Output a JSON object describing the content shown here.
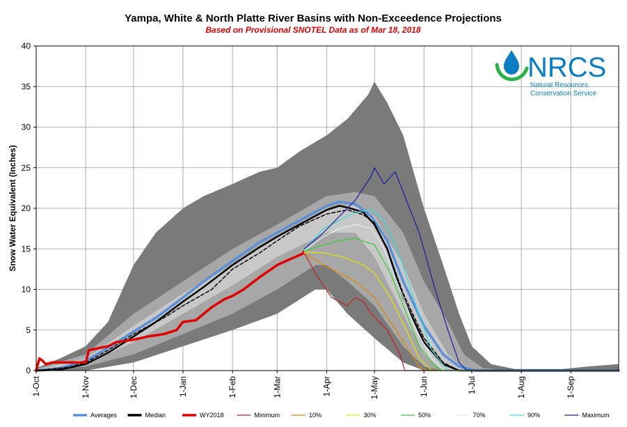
{
  "chart_data": {
    "type": "line",
    "title": "Yampa, White & North Platte River Basins with Non-Exceedence Projections",
    "subtitle": "Based on Provisional SNOTEL Data as of Mar 18, 2018",
    "xlabel": "",
    "ylabel": "Snow Water Equivalent (Inches)",
    "ylim": [
      0,
      40
    ],
    "yticks": [
      0,
      5,
      10,
      15,
      20,
      25,
      30,
      35,
      40
    ],
    "xticks": [
      {
        "label": "1-Oct",
        "day": 0
      },
      {
        "label": "1-Nov",
        "day": 31
      },
      {
        "label": "1-Dec",
        "day": 61
      },
      {
        "label": "1-Jan",
        "day": 92
      },
      {
        "label": "1-Feb",
        "day": 123
      },
      {
        "label": "1-Mar",
        "day": 151
      },
      {
        "label": "1-Apr",
        "day": 182
      },
      {
        "label": "1-May",
        "day": 212
      },
      {
        "label": "1-Jun",
        "day": 243
      },
      {
        "label": "1-Jul",
        "day": 273
      },
      {
        "label": "1-Aug",
        "day": 304
      },
      {
        "label": "1-Sep",
        "day": 335
      }
    ],
    "xlim": [
      0,
      365
    ],
    "grid": true,
    "bands": [
      {
        "name": "Max-Min range",
        "color": "#7a7a7a",
        "upper": [
          [
            0,
            0.3
          ],
          [
            15,
            1.5
          ],
          [
            31,
            3
          ],
          [
            45,
            6
          ],
          [
            61,
            13
          ],
          [
            75,
            17
          ],
          [
            92,
            20
          ],
          [
            105,
            21.5
          ],
          [
            123,
            23
          ],
          [
            140,
            24.5
          ],
          [
            151,
            25
          ],
          [
            165,
            27
          ],
          [
            182,
            29
          ],
          [
            195,
            31
          ],
          [
            208,
            34
          ],
          [
            212,
            35.6
          ],
          [
            220,
            33
          ],
          [
            230,
            29
          ],
          [
            243,
            20
          ],
          [
            255,
            13
          ],
          [
            265,
            7
          ],
          [
            273,
            3
          ],
          [
            285,
            0.8
          ],
          [
            300,
            0.2
          ],
          [
            330,
            0.2
          ],
          [
            345,
            0.5
          ],
          [
            365,
            0.8
          ]
        ],
        "lower": [
          [
            0,
            0
          ],
          [
            31,
            0
          ],
          [
            61,
            1
          ],
          [
            92,
            3
          ],
          [
            123,
            5
          ],
          [
            151,
            7
          ],
          [
            175,
            10
          ],
          [
            182,
            10
          ],
          [
            195,
            7
          ],
          [
            212,
            4
          ],
          [
            230,
            1
          ],
          [
            243,
            0
          ],
          [
            365,
            0
          ]
        ]
      },
      {
        "name": "10-90 range",
        "color": "#a7a7a7",
        "upper": [
          [
            0,
            0.2
          ],
          [
            31,
            2
          ],
          [
            61,
            7
          ],
          [
            92,
            11
          ],
          [
            123,
            15
          ],
          [
            151,
            18
          ],
          [
            182,
            21.5
          ],
          [
            200,
            22
          ],
          [
            212,
            21.5
          ],
          [
            230,
            17
          ],
          [
            243,
            11
          ],
          [
            258,
            6
          ],
          [
            268,
            2
          ],
          [
            280,
            0.3
          ],
          [
            300,
            0
          ],
          [
            365,
            0
          ]
        ],
        "lower": [
          [
            0,
            0
          ],
          [
            31,
            0.5
          ],
          [
            61,
            2
          ],
          [
            92,
            4.5
          ],
          [
            123,
            7
          ],
          [
            151,
            10
          ],
          [
            175,
            13
          ],
          [
            182,
            13
          ],
          [
            195,
            11
          ],
          [
            212,
            8
          ],
          [
            230,
            3
          ],
          [
            243,
            0.5
          ],
          [
            255,
            0
          ],
          [
            365,
            0
          ]
        ]
      },
      {
        "name": "30-70 range",
        "color": "#c8c8c8",
        "upper": [
          [
            0,
            0.1
          ],
          [
            31,
            1.5
          ],
          [
            61,
            5.5
          ],
          [
            92,
            9.5
          ],
          [
            123,
            13
          ],
          [
            151,
            16.5
          ],
          [
            182,
            20
          ],
          [
            200,
            20.5
          ],
          [
            212,
            19
          ],
          [
            230,
            13
          ],
          [
            243,
            7
          ],
          [
            258,
            2
          ],
          [
            268,
            0.2
          ],
          [
            280,
            0
          ],
          [
            365,
            0
          ]
        ],
        "lower": [
          [
            0,
            0
          ],
          [
            31,
            0.8
          ],
          [
            61,
            3.5
          ],
          [
            92,
            7
          ],
          [
            123,
            10.5
          ],
          [
            151,
            14
          ],
          [
            182,
            17
          ],
          [
            200,
            17
          ],
          [
            212,
            14
          ],
          [
            230,
            7
          ],
          [
            243,
            2
          ],
          [
            255,
            0
          ],
          [
            365,
            0
          ]
        ]
      }
    ],
    "series": [
      {
        "name": "Averages",
        "color": "#5b8fd6",
        "width": 3.5,
        "points": [
          [
            0,
            0
          ],
          [
            15,
            0.3
          ],
          [
            31,
            1.2
          ],
          [
            45,
            2.8
          ],
          [
            61,
            4.8
          ],
          [
            75,
            6.5
          ],
          [
            92,
            9
          ],
          [
            105,
            11
          ],
          [
            123,
            13.5
          ],
          [
            140,
            15.8
          ],
          [
            151,
            17
          ],
          [
            165,
            18.5
          ],
          [
            182,
            20.3
          ],
          [
            190,
            20.8
          ],
          [
            200,
            20.5
          ],
          [
            210,
            19
          ],
          [
            220,
            16
          ],
          [
            230,
            11
          ],
          [
            243,
            5.5
          ],
          [
            255,
            2
          ],
          [
            265,
            0.5
          ],
          [
            275,
            0
          ],
          [
            365,
            0
          ]
        ]
      },
      {
        "name": "Median",
        "color": "#000000",
        "width": 2.5,
        "points": [
          [
            0,
            0
          ],
          [
            15,
            0.1
          ],
          [
            31,
            0.8
          ],
          [
            45,
            2.2
          ],
          [
            61,
            4.2
          ],
          [
            75,
            6
          ],
          [
            92,
            8.5
          ],
          [
            105,
            10.3
          ],
          [
            123,
            13
          ],
          [
            140,
            15.2
          ],
          [
            151,
            16.5
          ],
          [
            165,
            18
          ],
          [
            182,
            19.8
          ],
          [
            190,
            20.3
          ],
          [
            195,
            20.1
          ],
          [
            205,
            19.5
          ],
          [
            212,
            18
          ],
          [
            220,
            15
          ],
          [
            230,
            9
          ],
          [
            243,
            3.5
          ],
          [
            255,
            0.8
          ],
          [
            265,
            0
          ],
          [
            365,
            0
          ]
        ]
      },
      {
        "name": "Median (dashed)",
        "color": "#000000",
        "width": 1.5,
        "dashed": true,
        "points": [
          [
            0,
            0
          ],
          [
            20,
            0.4
          ],
          [
            31,
            1
          ],
          [
            45,
            2.5
          ],
          [
            61,
            4.5
          ],
          [
            80,
            6.5
          ],
          [
            92,
            8
          ],
          [
            110,
            10
          ],
          [
            123,
            12.5
          ],
          [
            140,
            14.5
          ],
          [
            151,
            16
          ],
          [
            165,
            17.8
          ],
          [
            182,
            19.3
          ],
          [
            195,
            19.8
          ],
          [
            205,
            19.2
          ],
          [
            212,
            18.2
          ],
          [
            220,
            15
          ],
          [
            230,
            9.5
          ],
          [
            243,
            4
          ],
          [
            255,
            1
          ],
          [
            265,
            0
          ],
          [
            365,
            0
          ]
        ]
      },
      {
        "name": "WY2018",
        "color": "#e00000",
        "width": 3.5,
        "points": [
          [
            0,
            0
          ],
          [
            2,
            1.5
          ],
          [
            4,
            1.2
          ],
          [
            6,
            0.8
          ],
          [
            10,
            1
          ],
          [
            20,
            1
          ],
          [
            31,
            1
          ],
          [
            33,
            2.5
          ],
          [
            40,
            2.8
          ],
          [
            45,
            3
          ],
          [
            50,
            3.5
          ],
          [
            61,
            3.8
          ],
          [
            70,
            4.2
          ],
          [
            80,
            4.5
          ],
          [
            88,
            5
          ],
          [
            92,
            6
          ],
          [
            100,
            6.2
          ],
          [
            110,
            7.8
          ],
          [
            118,
            8.8
          ],
          [
            123,
            9.2
          ],
          [
            130,
            10
          ],
          [
            140,
            11.5
          ],
          [
            151,
            13
          ],
          [
            160,
            13.8
          ],
          [
            167,
            14.4
          ],
          [
            168,
            14.7
          ]
        ]
      },
      {
        "name": "Minimum",
        "color": "#c02020",
        "width": 1.2,
        "points": [
          [
            168,
            14.5
          ],
          [
            175,
            12
          ],
          [
            185,
            9
          ],
          [
            195,
            8
          ],
          [
            200,
            9
          ],
          [
            205,
            8.5
          ],
          [
            210,
            7
          ],
          [
            220,
            5
          ],
          [
            228,
            2
          ],
          [
            231,
            0
          ],
          [
            365,
            0
          ]
        ]
      },
      {
        "name": "10%",
        "color": "#e08a00",
        "width": 1.2,
        "points": [
          [
            168,
            14.5
          ],
          [
            180,
            13
          ],
          [
            190,
            12
          ],
          [
            200,
            11
          ],
          [
            212,
            9
          ],
          [
            222,
            6
          ],
          [
            232,
            3
          ],
          [
            240,
            0.5
          ],
          [
            245,
            0
          ],
          [
            365,
            0
          ]
        ]
      },
      {
        "name": "30%",
        "color": "#e6e600",
        "width": 1.2,
        "points": [
          [
            168,
            14.6
          ],
          [
            180,
            14.5
          ],
          [
            192,
            14
          ],
          [
            205,
            13
          ],
          [
            212,
            12
          ],
          [
            222,
            9
          ],
          [
            232,
            5
          ],
          [
            240,
            1.5
          ],
          [
            248,
            0
          ],
          [
            365,
            0
          ]
        ]
      },
      {
        "name": "50%",
        "color": "#33cc33",
        "width": 1.2,
        "points": [
          [
            168,
            14.7
          ],
          [
            180,
            15.5
          ],
          [
            190,
            16
          ],
          [
            200,
            16.3
          ],
          [
            212,
            15.5
          ],
          [
            222,
            12
          ],
          [
            232,
            7
          ],
          [
            240,
            3
          ],
          [
            250,
            0.5
          ],
          [
            255,
            0
          ],
          [
            365,
            0
          ]
        ]
      },
      {
        "name": "70%",
        "color": "#e0f0f8",
        "width": 1.2,
        "points": [
          [
            168,
            14.8
          ],
          [
            180,
            16.5
          ],
          [
            190,
            17.5
          ],
          [
            200,
            18
          ],
          [
            210,
            17.5
          ],
          [
            218,
            15
          ],
          [
            228,
            10
          ],
          [
            238,
            5
          ],
          [
            248,
            1.5
          ],
          [
            255,
            0
          ],
          [
            365,
            0
          ]
        ]
      },
      {
        "name": "90%",
        "color": "#33dddd",
        "width": 1.2,
        "points": [
          [
            168,
            14.9
          ],
          [
            180,
            17.5
          ],
          [
            190,
            18.5
          ],
          [
            200,
            19.5
          ],
          [
            210,
            19.8
          ],
          [
            218,
            18.5
          ],
          [
            228,
            14
          ],
          [
            238,
            8
          ],
          [
            248,
            2.5
          ],
          [
            258,
            0
          ],
          [
            365,
            0
          ]
        ]
      },
      {
        "name": "Maximum",
        "color": "#1a1aa0",
        "width": 1.2,
        "points": [
          [
            168,
            15
          ],
          [
            180,
            17
          ],
          [
            190,
            19
          ],
          [
            200,
            21
          ],
          [
            210,
            24
          ],
          [
            212,
            25
          ],
          [
            218,
            23
          ],
          [
            225,
            24.5
          ],
          [
            232,
            21
          ],
          [
            240,
            17
          ],
          [
            250,
            10
          ],
          [
            258,
            5
          ],
          [
            265,
            1
          ],
          [
            270,
            0
          ],
          [
            365,
            0
          ]
        ]
      }
    ],
    "legend": {
      "placement": "bottom",
      "items": [
        {
          "label": "Averages",
          "color": "#5b8fd6",
          "thick": true
        },
        {
          "label": "Median",
          "color": "#000000",
          "thick": true
        },
        {
          "label": "WY2018",
          "color": "#e00000",
          "thick": true
        },
        {
          "label": "Minimum",
          "color": "#c02020",
          "thick": false
        },
        {
          "label": "10%",
          "color": "#e08a00",
          "thick": false
        },
        {
          "label": "30%",
          "color": "#e6e600",
          "thick": false
        },
        {
          "label": "50%",
          "color": "#33cc33",
          "thick": false
        },
        {
          "label": "70%",
          "color": "#e0f0f8",
          "thick": false
        },
        {
          "label": "90%",
          "color": "#33dddd",
          "thick": false
        },
        {
          "label": "Maximum",
          "color": "#1a1aa0",
          "thick": false
        }
      ]
    }
  },
  "logo": {
    "name": "NRCS",
    "line1": "Natural Resources",
    "line2": "Conservation Service",
    "color": "#0a7ec2",
    "accent": "#2bb24c"
  }
}
